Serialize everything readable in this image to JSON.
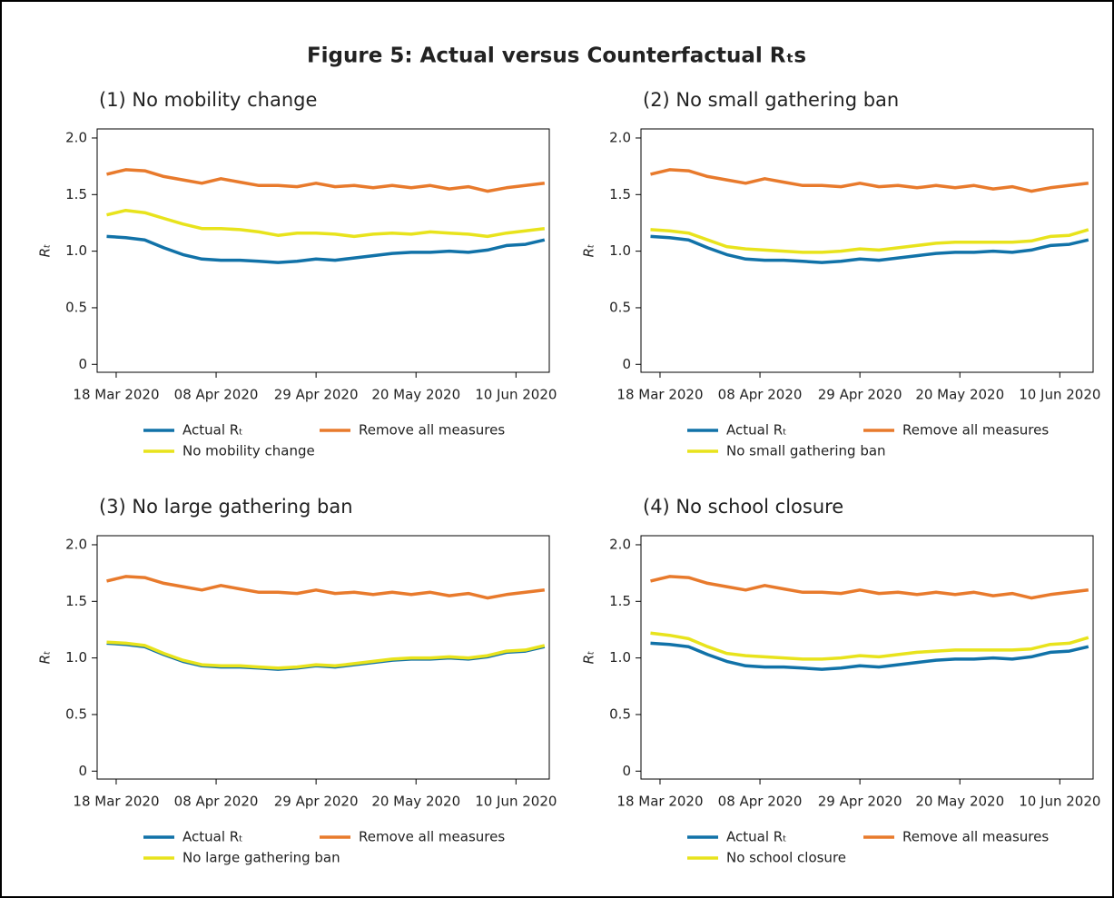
{
  "title": "Figure 5: Actual versus Counterfactual Rₜs",
  "chart_data": [
    {
      "type": "line",
      "subtitle": "(1)  No mobility change",
      "ylabel": "Rₜ",
      "legend": "bottom",
      "x": [
        "2020-03-16",
        "2020-03-20",
        "2020-03-24",
        "2020-03-28",
        "2020-04-01",
        "2020-04-05",
        "2020-04-09",
        "2020-04-13",
        "2020-04-17",
        "2020-04-21",
        "2020-04-25",
        "2020-04-29",
        "2020-05-03",
        "2020-05-07",
        "2020-05-11",
        "2020-05-15",
        "2020-05-19",
        "2020-05-23",
        "2020-05-27",
        "2020-05-31",
        "2020-06-04",
        "2020-06-08",
        "2020-06-12",
        "2020-06-16"
      ],
      "xlim": [
        "2020-03-14",
        "2020-06-17"
      ],
      "xticks": [
        {
          "value": "2020-03-18",
          "label": "18 Mar 2020"
        },
        {
          "value": "2020-04-08",
          "label": "08 Apr 2020"
        },
        {
          "value": "2020-04-29",
          "label": "29 Apr 2020"
        },
        {
          "value": "2020-05-20",
          "label": "20 May 2020"
        },
        {
          "value": "2020-06-10",
          "label": "10 Jun 2020"
        }
      ],
      "ylim": [
        -0.07,
        2.08
      ],
      "yticks": [
        0,
        0.5,
        {
          "value": 1,
          "label": "1.0"
        },
        1.5,
        {
          "value": 2,
          "label": "2.0"
        }
      ],
      "series": [
        {
          "name": "Actual Rₜ",
          "color": "#1172a8",
          "values": [
            1.13,
            1.12,
            1.1,
            1.03,
            0.97,
            0.93,
            0.92,
            0.92,
            0.91,
            0.9,
            0.91,
            0.93,
            0.92,
            0.94,
            0.96,
            0.98,
            0.99,
            0.99,
            1.0,
            0.99,
            1.01,
            1.05,
            1.06,
            1.1
          ]
        },
        {
          "name": "Remove all measures",
          "color": "#e87a2c",
          "values": [
            1.68,
            1.72,
            1.71,
            1.66,
            1.63,
            1.6,
            1.64,
            1.61,
            1.58,
            1.58,
            1.57,
            1.6,
            1.57,
            1.58,
            1.56,
            1.58,
            1.56,
            1.58,
            1.55,
            1.57,
            1.53,
            1.56,
            1.58,
            1.6
          ]
        },
        {
          "name": "No mobility change",
          "color": "#e8e31c",
          "values": [
            1.32,
            1.36,
            1.34,
            1.29,
            1.24,
            1.2,
            1.2,
            1.19,
            1.17,
            1.14,
            1.16,
            1.16,
            1.15,
            1.13,
            1.15,
            1.16,
            1.15,
            1.17,
            1.16,
            1.15,
            1.13,
            1.16,
            1.18,
            1.2
          ]
        }
      ]
    },
    {
      "type": "line",
      "subtitle": "(2)  No small gathering ban",
      "ylabel": "Rₜ",
      "legend": "bottom",
      "x": [
        "2020-03-16",
        "2020-03-20",
        "2020-03-24",
        "2020-03-28",
        "2020-04-01",
        "2020-04-05",
        "2020-04-09",
        "2020-04-13",
        "2020-04-17",
        "2020-04-21",
        "2020-04-25",
        "2020-04-29",
        "2020-05-03",
        "2020-05-07",
        "2020-05-11",
        "2020-05-15",
        "2020-05-19",
        "2020-05-23",
        "2020-05-27",
        "2020-05-31",
        "2020-06-04",
        "2020-06-08",
        "2020-06-12",
        "2020-06-16"
      ],
      "xlim": [
        "2020-03-14",
        "2020-06-17"
      ],
      "xticks": [
        {
          "value": "2020-03-18",
          "label": "18 Mar 2020"
        },
        {
          "value": "2020-04-08",
          "label": "08 Apr 2020"
        },
        {
          "value": "2020-04-29",
          "label": "29 Apr 2020"
        },
        {
          "value": "2020-05-20",
          "label": "20 May 2020"
        },
        {
          "value": "2020-06-10",
          "label": "10 Jun 2020"
        }
      ],
      "ylim": [
        -0.07,
        2.08
      ],
      "yticks": [
        0,
        0.5,
        {
          "value": 1,
          "label": "1.0"
        },
        1.5,
        {
          "value": 2,
          "label": "2.0"
        }
      ],
      "series": [
        {
          "name": "Actual Rₜ",
          "color": "#1172a8",
          "values": [
            1.13,
            1.12,
            1.1,
            1.03,
            0.97,
            0.93,
            0.92,
            0.92,
            0.91,
            0.9,
            0.91,
            0.93,
            0.92,
            0.94,
            0.96,
            0.98,
            0.99,
            0.99,
            1.0,
            0.99,
            1.01,
            1.05,
            1.06,
            1.1
          ]
        },
        {
          "name": "Remove all measures",
          "color": "#e87a2c",
          "values": [
            1.68,
            1.72,
            1.71,
            1.66,
            1.63,
            1.6,
            1.64,
            1.61,
            1.58,
            1.58,
            1.57,
            1.6,
            1.57,
            1.58,
            1.56,
            1.58,
            1.56,
            1.58,
            1.55,
            1.57,
            1.53,
            1.56,
            1.58,
            1.6
          ]
        },
        {
          "name": "No small gathering ban",
          "color": "#e8e31c",
          "values": [
            1.19,
            1.18,
            1.16,
            1.1,
            1.04,
            1.02,
            1.01,
            1.0,
            0.99,
            0.99,
            1.0,
            1.02,
            1.01,
            1.03,
            1.05,
            1.07,
            1.08,
            1.08,
            1.08,
            1.08,
            1.09,
            1.13,
            1.14,
            1.19
          ]
        }
      ]
    },
    {
      "type": "line",
      "subtitle": "(3)  No large gathering ban",
      "ylabel": "Rₜ",
      "legend": "bottom",
      "x": [
        "2020-03-16",
        "2020-03-20",
        "2020-03-24",
        "2020-03-28",
        "2020-04-01",
        "2020-04-05",
        "2020-04-09",
        "2020-04-13",
        "2020-04-17",
        "2020-04-21",
        "2020-04-25",
        "2020-04-29",
        "2020-05-03",
        "2020-05-07",
        "2020-05-11",
        "2020-05-15",
        "2020-05-19",
        "2020-05-23",
        "2020-05-27",
        "2020-05-31",
        "2020-06-04",
        "2020-06-08",
        "2020-06-12",
        "2020-06-16"
      ],
      "xlim": [
        "2020-03-14",
        "2020-06-17"
      ],
      "xticks": [
        {
          "value": "2020-03-18",
          "label": "18 Mar 2020"
        },
        {
          "value": "2020-04-08",
          "label": "08 Apr 2020"
        },
        {
          "value": "2020-04-29",
          "label": "29 Apr 2020"
        },
        {
          "value": "2020-05-20",
          "label": "20 May 2020"
        },
        {
          "value": "2020-06-10",
          "label": "10 Jun 2020"
        }
      ],
      "ylim": [
        -0.07,
        2.08
      ],
      "yticks": [
        0,
        0.5,
        {
          "value": 1,
          "label": "1.0"
        },
        1.5,
        {
          "value": 2,
          "label": "2.0"
        }
      ],
      "series": [
        {
          "name": "Actual Rₜ",
          "color": "#1172a8",
          "values": [
            1.13,
            1.12,
            1.1,
            1.03,
            0.97,
            0.93,
            0.92,
            0.92,
            0.91,
            0.9,
            0.91,
            0.93,
            0.92,
            0.94,
            0.96,
            0.98,
            0.99,
            0.99,
            1.0,
            0.99,
            1.01,
            1.05,
            1.06,
            1.1
          ]
        },
        {
          "name": "Remove all measures",
          "color": "#e87a2c",
          "values": [
            1.68,
            1.72,
            1.71,
            1.66,
            1.63,
            1.6,
            1.64,
            1.61,
            1.58,
            1.58,
            1.57,
            1.6,
            1.57,
            1.58,
            1.56,
            1.58,
            1.56,
            1.58,
            1.55,
            1.57,
            1.53,
            1.56,
            1.58,
            1.6
          ]
        },
        {
          "name": "No large gathering ban",
          "color": "#e8e31c",
          "values": [
            1.14,
            1.13,
            1.11,
            1.04,
            0.98,
            0.94,
            0.93,
            0.93,
            0.92,
            0.91,
            0.92,
            0.94,
            0.93,
            0.95,
            0.97,
            0.99,
            1.0,
            1.0,
            1.01,
            1.0,
            1.02,
            1.06,
            1.07,
            1.11
          ]
        }
      ]
    },
    {
      "type": "line",
      "subtitle": "(4)  No school closure",
      "ylabel": "Rₜ",
      "legend": "bottom",
      "x": [
        "2020-03-16",
        "2020-03-20",
        "2020-03-24",
        "2020-03-28",
        "2020-04-01",
        "2020-04-05",
        "2020-04-09",
        "2020-04-13",
        "2020-04-17",
        "2020-04-21",
        "2020-04-25",
        "2020-04-29",
        "2020-05-03",
        "2020-05-07",
        "2020-05-11",
        "2020-05-15",
        "2020-05-19",
        "2020-05-23",
        "2020-05-27",
        "2020-05-31",
        "2020-06-04",
        "2020-06-08",
        "2020-06-12",
        "2020-06-16"
      ],
      "xlim": [
        "2020-03-14",
        "2020-06-17"
      ],
      "xticks": [
        {
          "value": "2020-03-18",
          "label": "18 Mar 2020"
        },
        {
          "value": "2020-04-08",
          "label": "08 Apr 2020"
        },
        {
          "value": "2020-04-29",
          "label": "29 Apr 2020"
        },
        {
          "value": "2020-05-20",
          "label": "20 May 2020"
        },
        {
          "value": "2020-06-10",
          "label": "10 Jun 2020"
        }
      ],
      "ylim": [
        -0.07,
        2.08
      ],
      "yticks": [
        0,
        0.5,
        {
          "value": 1,
          "label": "1.0"
        },
        1.5,
        {
          "value": 2,
          "label": "2.0"
        }
      ],
      "series": [
        {
          "name": "Actual Rₜ",
          "color": "#1172a8",
          "values": [
            1.13,
            1.12,
            1.1,
            1.03,
            0.97,
            0.93,
            0.92,
            0.92,
            0.91,
            0.9,
            0.91,
            0.93,
            0.92,
            0.94,
            0.96,
            0.98,
            0.99,
            0.99,
            1.0,
            0.99,
            1.01,
            1.05,
            1.06,
            1.1
          ]
        },
        {
          "name": "Remove all measures",
          "color": "#e87a2c",
          "values": [
            1.68,
            1.72,
            1.71,
            1.66,
            1.63,
            1.6,
            1.64,
            1.61,
            1.58,
            1.58,
            1.57,
            1.6,
            1.57,
            1.58,
            1.56,
            1.58,
            1.56,
            1.58,
            1.55,
            1.57,
            1.53,
            1.56,
            1.58,
            1.6
          ]
        },
        {
          "name": "No school closure",
          "color": "#e8e31c",
          "values": [
            1.22,
            1.2,
            1.17,
            1.1,
            1.04,
            1.02,
            1.01,
            1.0,
            0.99,
            0.99,
            1.0,
            1.02,
            1.01,
            1.03,
            1.05,
            1.06,
            1.07,
            1.07,
            1.07,
            1.07,
            1.08,
            1.12,
            1.13,
            1.18
          ]
        }
      ]
    }
  ]
}
